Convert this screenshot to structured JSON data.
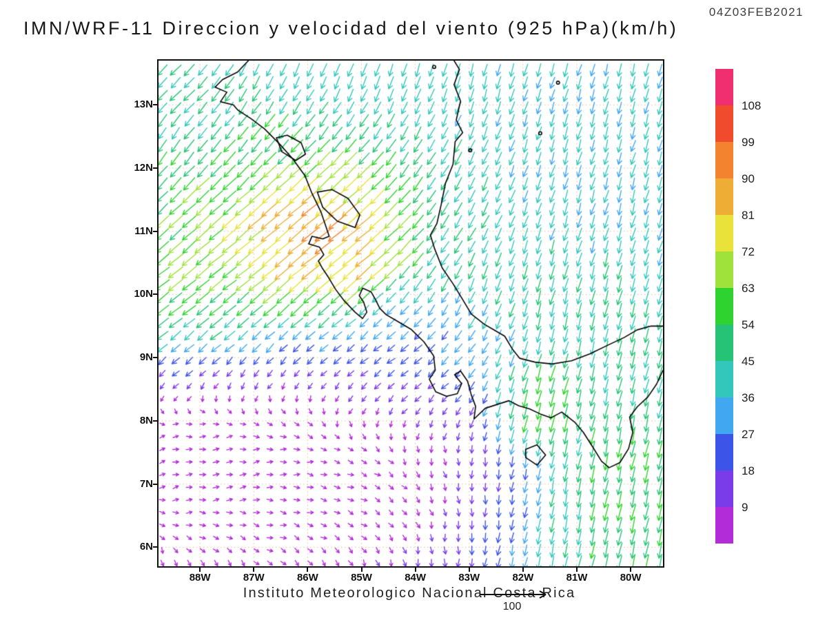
{
  "header": {
    "timestamp": "04Z03FEB2021",
    "title": "IMN/WRF-11 Direccion y velocidad del viento (925 hPa)(km/h)"
  },
  "footer": {
    "credit": "Instituto Meteorologico Nacional Costa Rica",
    "reference_label": "100"
  },
  "axes": {
    "lat": {
      "min": 5.7,
      "max": 13.7,
      "ticks": [
        {
          "value": 13,
          "label": "13N"
        },
        {
          "value": 12,
          "label": "12N"
        },
        {
          "value": 11,
          "label": "11N"
        },
        {
          "value": 10,
          "label": "10N"
        },
        {
          "value": 9,
          "label": "9N"
        },
        {
          "value": 8,
          "label": "8N"
        },
        {
          "value": 7,
          "label": "7N"
        },
        {
          "value": 6,
          "label": "6N"
        }
      ]
    },
    "lon": {
      "min": -88.77,
      "max": -79.4,
      "ticks": [
        {
          "value": -88,
          "label": "88W"
        },
        {
          "value": -87,
          "label": "87W"
        },
        {
          "value": -86,
          "label": "86W"
        },
        {
          "value": -85,
          "label": "85W"
        },
        {
          "value": -84,
          "label": "84W"
        },
        {
          "value": -83,
          "label": "83W"
        },
        {
          "value": -82,
          "label": "82W"
        },
        {
          "value": -81,
          "label": "81W"
        },
        {
          "value": -80,
          "label": "80W"
        }
      ]
    }
  },
  "colorbar": {
    "units": "km/h",
    "thresholds": [
      9,
      18,
      27,
      36,
      45,
      54,
      63,
      72,
      81,
      90,
      99,
      108
    ],
    "colors_ascending": [
      "#b22dd8",
      "#7a3ce8",
      "#3c55e8",
      "#41a7f0",
      "#33c7bb",
      "#26c377",
      "#2fd32f",
      "#9fe23c",
      "#e8e23a",
      "#eeae36",
      "#f3832e",
      "#f04b2d",
      "#ef2f70"
    ],
    "labels_top_to_bottom": [
      "108",
      "99",
      "90",
      "81",
      "72",
      "63",
      "54",
      "45",
      "36",
      "27",
      "18",
      "9"
    ]
  },
  "chart_data": {
    "type": "vector_field",
    "title": "IMN/WRF-11 Direccion y velocidad del viento (925 hPa)(km/h)",
    "model": "IMN/WRF-11",
    "level": "925 hPa",
    "units": "km/h",
    "valid_time": "04Z03FEB2021",
    "axes": {
      "lon_min": -88.77,
      "lon_max": -79.4,
      "lat_min": 5.7,
      "lat_max": 13.7
    },
    "style": {
      "gridline_color": "#e8bc96",
      "coastline_color": "#000000",
      "background": "#ffffff"
    },
    "wind_field": {
      "grid": {
        "lon_min": -88.7,
        "lon_max": -79.45,
        "lon_step": 0.25,
        "lat_min": 5.75,
        "lat_max": 13.6,
        "lat_step": 0.2
      },
      "background": {
        "u": -10,
        "v": -36,
        "weight": 0.4
      },
      "features": [
        {
          "name": "papagayo-jet",
          "lon": -86.4,
          "lat": 11.0,
          "rx": 2.4,
          "ry": 1.5,
          "u": -58,
          "v": -46,
          "weight": 1.0
        },
        {
          "name": "papagayo-core",
          "lon": -85.8,
          "lat": 10.8,
          "rx": 1.1,
          "ry": 0.8,
          "u": -95,
          "v": -70,
          "weight": 1.5
        },
        {
          "name": "papagayo-west-extension",
          "lon": -88.5,
          "lat": 9.9,
          "rx": 2.0,
          "ry": 1.3,
          "u": -62,
          "v": -38,
          "weight": 1.0
        },
        {
          "name": "nw-corner-gap",
          "lon": -88.6,
          "lat": 13.5,
          "rx": 1.0,
          "ry": 0.7,
          "u": -45,
          "v": -30,
          "weight": 0.8
        },
        {
          "name": "pacific-calm",
          "lon": -86.4,
          "lat": 7.1,
          "rx": 2.8,
          "ry": 1.7,
          "u": 9,
          "v": 5,
          "weight": 2.4
        },
        {
          "name": "pacific-calm-west",
          "lon": -88.6,
          "lat": 7.6,
          "rx": 1.6,
          "ry": 1.2,
          "u": 7,
          "v": 9,
          "weight": 1.6
        },
        {
          "name": "south-costa-rica-westerly",
          "lon": -84.3,
          "lat": 8.9,
          "rx": 1.7,
          "ry": 0.9,
          "u": -26,
          "v": -10,
          "weight": 1.2
        },
        {
          "name": "panama-gulf-jet",
          "lon": -80.0,
          "lat": 7.0,
          "rx": 1.3,
          "ry": 1.7,
          "u": -12,
          "v": -58,
          "weight": 1.2
        },
        {
          "name": "chiriqui-gap-jet",
          "lon": -81.8,
          "lat": 8.3,
          "rx": 0.6,
          "ry": 0.5,
          "u": -18,
          "v": -68,
          "weight": 1.6
        },
        {
          "name": "caribbean-coast-panama",
          "lon": -81.5,
          "lat": 9.6,
          "rx": 2.0,
          "ry": 0.8,
          "u": -12,
          "v": -48,
          "weight": 0.8
        }
      ]
    },
    "geography": {
      "coastlines": [
        [
          [
            -87.1,
            13.7
          ],
          [
            -87.3,
            13.52
          ],
          [
            -87.58,
            13.4
          ],
          [
            -87.72,
            13.28
          ],
          [
            -87.5,
            13.2
          ],
          [
            -87.62,
            13.05
          ],
          [
            -87.38,
            13.0
          ],
          [
            -87.3,
            12.92
          ],
          [
            -87.05,
            12.78
          ],
          [
            -86.8,
            12.62
          ],
          [
            -86.52,
            12.38
          ],
          [
            -86.28,
            12.15
          ],
          [
            -86.05,
            11.88
          ],
          [
            -85.92,
            11.6
          ],
          [
            -85.75,
            11.3
          ],
          [
            -85.65,
            11.05
          ],
          [
            -85.6,
            10.92
          ],
          [
            -85.72,
            10.88
          ],
          [
            -85.92,
            10.92
          ],
          [
            -85.98,
            10.8
          ],
          [
            -85.78,
            10.75
          ],
          [
            -85.7,
            10.63
          ],
          [
            -85.8,
            10.53
          ],
          [
            -85.73,
            10.42
          ],
          [
            -85.62,
            10.28
          ],
          [
            -85.48,
            10.08
          ],
          [
            -85.32,
            9.9
          ],
          [
            -85.12,
            9.72
          ],
          [
            -84.98,
            9.62
          ],
          [
            -84.9,
            9.72
          ],
          [
            -84.96,
            9.88
          ],
          [
            -85.04,
            9.98
          ],
          [
            -84.98,
            10.1
          ],
          [
            -84.82,
            10.04
          ],
          [
            -84.74,
            9.92
          ],
          [
            -84.66,
            9.78
          ],
          [
            -84.54,
            9.68
          ],
          [
            -84.34,
            9.58
          ],
          [
            -84.08,
            9.45
          ],
          [
            -83.84,
            9.25
          ],
          [
            -83.66,
            9.03
          ],
          [
            -83.63,
            8.8
          ],
          [
            -83.74,
            8.66
          ],
          [
            -83.62,
            8.46
          ],
          [
            -83.42,
            8.39
          ],
          [
            -83.22,
            8.43
          ],
          [
            -83.14,
            8.59
          ],
          [
            -83.27,
            8.73
          ],
          [
            -83.16,
            8.79
          ],
          [
            -83.03,
            8.63
          ],
          [
            -82.96,
            8.41
          ],
          [
            -82.88,
            8.23
          ],
          [
            -82.91,
            8.03
          ],
          [
            -82.7,
            8.2
          ],
          [
            -82.48,
            8.26
          ],
          [
            -82.26,
            8.32
          ],
          [
            -82.08,
            8.24
          ],
          [
            -81.88,
            8.19
          ],
          [
            -81.68,
            8.11
          ],
          [
            -81.48,
            8.05
          ],
          [
            -81.28,
            8.14
          ],
          [
            -81.04,
            7.98
          ],
          [
            -80.88,
            7.82
          ],
          [
            -80.7,
            7.58
          ],
          [
            -80.54,
            7.36
          ],
          [
            -80.4,
            7.26
          ],
          [
            -80.2,
            7.34
          ],
          [
            -80.04,
            7.56
          ],
          [
            -79.96,
            7.82
          ],
          [
            -80.02,
            8.06
          ],
          [
            -79.88,
            8.22
          ],
          [
            -79.68,
            8.38
          ],
          [
            -79.52,
            8.58
          ],
          [
            -79.4,
            8.8
          ]
        ],
        [
          [
            -79.4,
            9.5
          ],
          [
            -79.62,
            9.5
          ],
          [
            -79.88,
            9.44
          ],
          [
            -80.12,
            9.32
          ],
          [
            -80.42,
            9.2
          ],
          [
            -80.76,
            9.06
          ],
          [
            -81.1,
            8.95
          ],
          [
            -81.46,
            8.9
          ],
          [
            -81.78,
            8.93
          ],
          [
            -82.06,
            8.99
          ],
          [
            -82.2,
            9.14
          ],
          [
            -82.34,
            9.34
          ],
          [
            -82.52,
            9.43
          ],
          [
            -82.72,
            9.53
          ],
          [
            -82.96,
            9.69
          ],
          [
            -83.12,
            9.92
          ],
          [
            -83.3,
            10.17
          ],
          [
            -83.5,
            10.42
          ],
          [
            -83.64,
            10.72
          ],
          [
            -83.72,
            10.94
          ],
          [
            -83.6,
            11.12
          ],
          [
            -83.52,
            11.42
          ],
          [
            -83.44,
            11.76
          ],
          [
            -83.3,
            12.06
          ],
          [
            -83.26,
            12.42
          ],
          [
            -83.12,
            12.56
          ],
          [
            -83.24,
            12.76
          ],
          [
            -83.16,
            13.06
          ],
          [
            -83.28,
            13.32
          ],
          [
            -83.18,
            13.56
          ],
          [
            -83.28,
            13.7
          ]
        ]
      ],
      "lakes": [
        [
          [
            -86.58,
            12.48
          ],
          [
            -86.38,
            12.52
          ],
          [
            -86.12,
            12.4
          ],
          [
            -86.04,
            12.22
          ],
          [
            -86.22,
            12.12
          ],
          [
            -86.48,
            12.26
          ],
          [
            -86.58,
            12.48
          ]
        ],
        [
          [
            -85.82,
            11.62
          ],
          [
            -85.55,
            11.66
          ],
          [
            -85.25,
            11.52
          ],
          [
            -85.03,
            11.26
          ],
          [
            -85.12,
            11.06
          ],
          [
            -85.45,
            11.16
          ],
          [
            -85.72,
            11.38
          ],
          [
            -85.82,
            11.62
          ]
        ]
      ],
      "islands": [
        [
          [
            -81.95,
            7.55
          ],
          [
            -81.74,
            7.62
          ],
          [
            -81.58,
            7.46
          ],
          [
            -81.74,
            7.3
          ],
          [
            -81.95,
            7.42
          ],
          [
            -81.95,
            7.55
          ]
        ]
      ],
      "islets": [
        [
          -81.35,
          13.35
        ],
        [
          -81.68,
          12.55
        ],
        [
          -82.98,
          12.28
        ],
        [
          -83.65,
          13.6
        ]
      ]
    }
  }
}
